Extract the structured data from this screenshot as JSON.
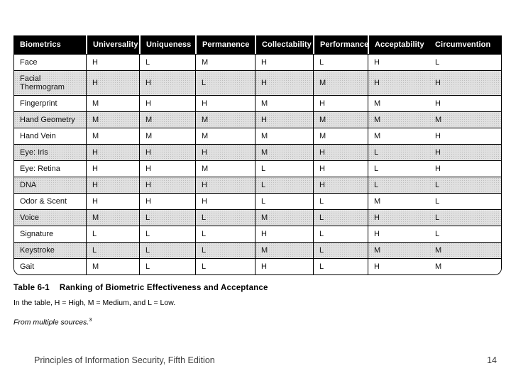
{
  "table": {
    "columns": [
      "Biometrics",
      "Universality",
      "Uniqueness",
      "Permanence",
      "Collectability",
      "Performance",
      "Acceptability",
      "Circumvention"
    ],
    "legend_key": {
      "H": "High",
      "M": "Medium",
      "L": "Low"
    },
    "rows": [
      {
        "name": "Face",
        "values": [
          "H",
          "L",
          "M",
          "H",
          "L",
          "H",
          "L"
        ]
      },
      {
        "name": "Facial Thermogram",
        "values": [
          "H",
          "H",
          "L",
          "H",
          "M",
          "H",
          "H"
        ]
      },
      {
        "name": "Fingerprint",
        "values": [
          "M",
          "H",
          "H",
          "M",
          "H",
          "M",
          "H"
        ]
      },
      {
        "name": "Hand Geometry",
        "values": [
          "M",
          "M",
          "M",
          "H",
          "M",
          "M",
          "M"
        ]
      },
      {
        "name": "Hand Vein",
        "values": [
          "M",
          "M",
          "M",
          "M",
          "M",
          "M",
          "H"
        ]
      },
      {
        "name": "Eye: Iris",
        "values": [
          "H",
          "H",
          "H",
          "M",
          "H",
          "L",
          "H"
        ]
      },
      {
        "name": "Eye: Retina",
        "values": [
          "H",
          "H",
          "M",
          "L",
          "H",
          "L",
          "H"
        ]
      },
      {
        "name": "DNA",
        "values": [
          "H",
          "H",
          "H",
          "L",
          "H",
          "L",
          "L"
        ]
      },
      {
        "name": "Odor & Scent",
        "values": [
          "H",
          "H",
          "H",
          "L",
          "L",
          "M",
          "L"
        ]
      },
      {
        "name": "Voice",
        "values": [
          "M",
          "L",
          "L",
          "M",
          "L",
          "H",
          "L"
        ]
      },
      {
        "name": "Signature",
        "values": [
          "L",
          "L",
          "L",
          "H",
          "L",
          "H",
          "L"
        ]
      },
      {
        "name": "Keystroke",
        "values": [
          "L",
          "L",
          "L",
          "M",
          "L",
          "M",
          "M"
        ]
      },
      {
        "name": "Gait",
        "values": [
          "M",
          "L",
          "L",
          "H",
          "L",
          "H",
          "M"
        ]
      }
    ]
  },
  "caption": {
    "label": "Table 6-1",
    "title": "Ranking of Biometric Effectiveness and Acceptance",
    "legend": "In the table, H = High, M = Medium, and L = Low.",
    "source": "From multiple sources.",
    "source_superscript": "3"
  },
  "footer": {
    "left": "Principles of Information Security, Fifth Edition",
    "page": "14"
  },
  "colors": {
    "header_background": "#000000",
    "header_text": "#ffffff",
    "stripe_background": "#e0e0e0",
    "body_text": "#111111",
    "footer_text": "#3d3d3d"
  }
}
